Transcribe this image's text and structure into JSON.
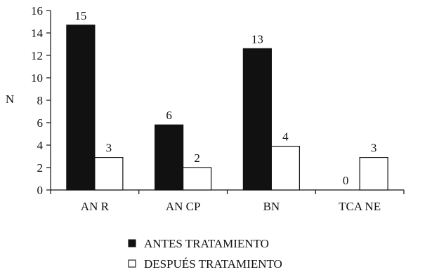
{
  "chart_data": {
    "type": "bar",
    "title": "",
    "xlabel": "",
    "ylabel": "N",
    "ylim": [
      0,
      16
    ],
    "yticks": [
      0,
      2,
      4,
      6,
      8,
      10,
      12,
      14,
      16
    ],
    "grid": false,
    "legend_position": "bottom",
    "categories": [
      "AN R",
      "AN CP",
      "BN",
      "TCA NE"
    ],
    "series": [
      {
        "name": "ANTES TRATAMIENTO",
        "values": [
          14.7,
          5.8,
          12.6,
          0
        ],
        "labels": [
          "15",
          "6",
          "13",
          "0"
        ],
        "color": "#111111"
      },
      {
        "name": "DESPUÉS TRATAMIENTO",
        "values": [
          2.9,
          2.0,
          3.9,
          2.9
        ],
        "labels": [
          "3",
          "2",
          "4",
          "3"
        ],
        "color": "#ffffff"
      }
    ]
  }
}
